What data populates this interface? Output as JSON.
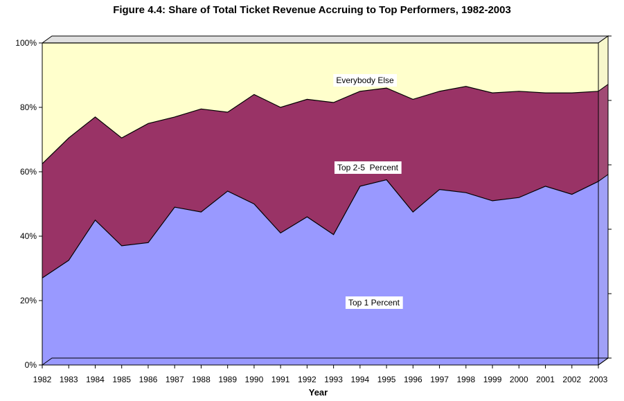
{
  "chart_data": {
    "type": "area",
    "stacked": true,
    "title": "Figure 4.4: Share of Total Ticket Revenue Accruing to Top Performers, 1982-2003",
    "xlabel": "Year",
    "ylabel": "",
    "ylim": [
      0,
      100
    ],
    "y_ticks": [
      "0%",
      "20%",
      "40%",
      "60%",
      "80%",
      "100%"
    ],
    "y_tick_values": [
      0,
      20,
      40,
      60,
      80,
      100
    ],
    "categories": [
      "1982",
      "1983",
      "1984",
      "1985",
      "1986",
      "1987",
      "1988",
      "1989",
      "1990",
      "1991",
      "1992",
      "1993",
      "1994",
      "1995",
      "1996",
      "1997",
      "1998",
      "1999",
      "2000",
      "2001",
      "2002",
      "2003"
    ],
    "series": [
      {
        "name": "Top 1 Percent",
        "color": "#9999ff",
        "cumulative": [
          27,
          32.5,
          45,
          37,
          38,
          49,
          47.5,
          54,
          50,
          41,
          46,
          40.5,
          55.5,
          57.5,
          47.5,
          54.5,
          53.5,
          51,
          52,
          55.5,
          53,
          57
        ]
      },
      {
        "name": "Top 2-5  Percent",
        "color": "#993366",
        "cumulative": [
          62.5,
          70.5,
          77,
          70.5,
          75,
          77,
          79.5,
          78.5,
          84,
          80,
          82.5,
          81.5,
          85,
          86,
          82.5,
          85,
          86.5,
          84.5,
          85,
          84.5,
          84.5,
          85
        ]
      },
      {
        "name": "Everybody Else",
        "color": "#ffffcc",
        "cumulative": [
          100,
          100,
          100,
          100,
          100,
          100,
          100,
          100,
          100,
          100,
          100,
          100,
          100,
          100,
          100,
          100,
          100,
          100,
          100,
          100,
          100,
          100
        ]
      }
    ],
    "grid": false,
    "legend": "none",
    "colors": {
      "wall_side": "#cfcfcf",
      "wall_top": "#e0e0e0",
      "outline": "#000000"
    }
  }
}
